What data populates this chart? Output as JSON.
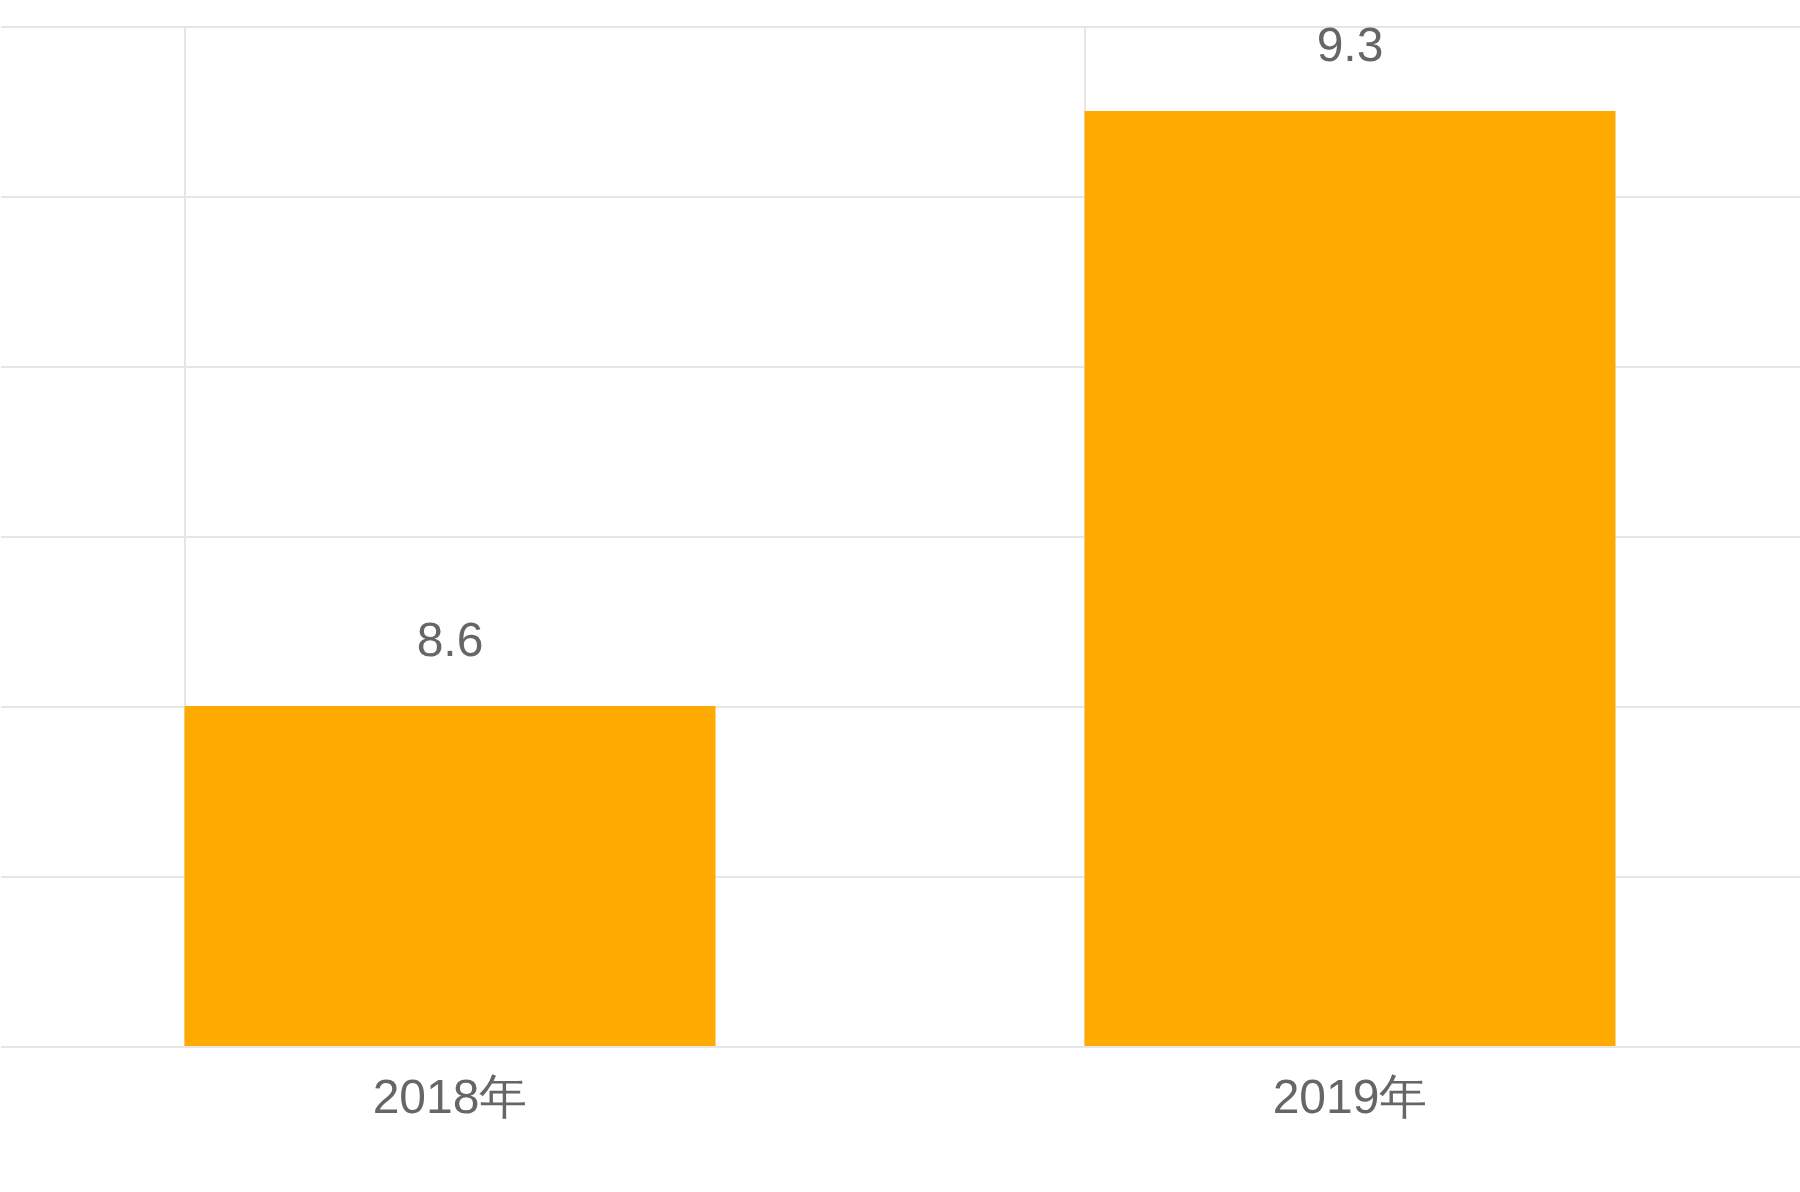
{
  "chart_data": {
    "type": "bar",
    "categories": [
      "2018年",
      "2019年"
    ],
    "series": [
      {
        "color": "#ffaa00",
        "values": [
          8.6,
          9.3
        ]
      }
    ],
    "ylim": [
      8.2,
      9.4
    ],
    "yticks": [
      8.2,
      8.4,
      8.6,
      8.8,
      9.0,
      9.2,
      9.4
    ],
    "tick_labels": "x",
    "grid": true,
    "data_labels": true
  }
}
